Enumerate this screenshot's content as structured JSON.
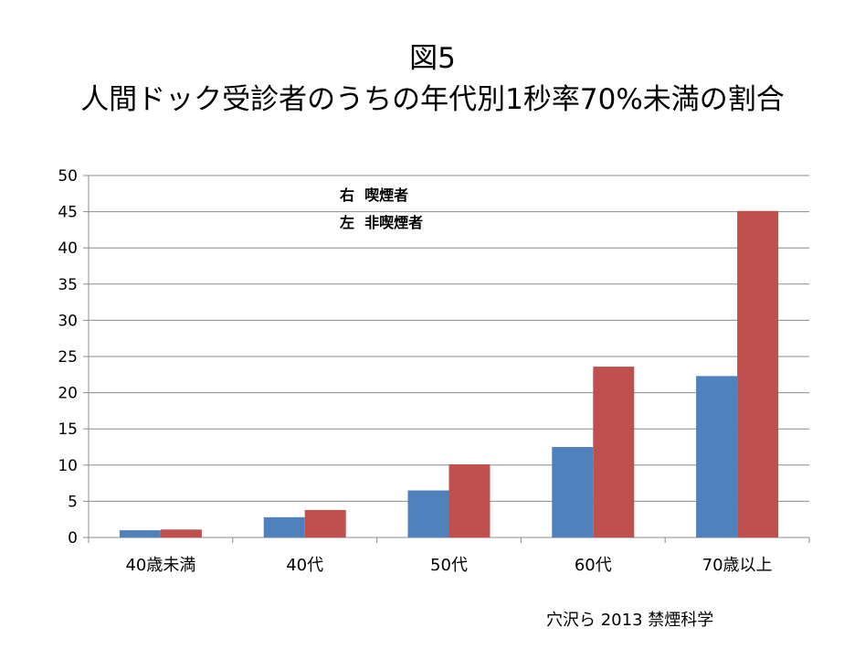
{
  "figure": {
    "title_line1": "図5",
    "title_line2": "人間ドック受診者のうちの年代別1秒率70%未満の割合",
    "source": "穴沢ら 2013 禁煙科学"
  },
  "chart_data": {
    "type": "bar",
    "categories": [
      "40歳未満",
      "40代",
      "50代",
      "60代",
      "70歳以上"
    ],
    "series": [
      {
        "name": "非喫煙者",
        "color": "#4f81bd",
        "values": [
          1.0,
          2.8,
          6.5,
          12.5,
          22.3
        ]
      },
      {
        "name": "喫煙者",
        "color": "#c0504d",
        "values": [
          1.1,
          3.8,
          10.1,
          23.6,
          45.1
        ]
      }
    ],
    "ylim": [
      0,
      50
    ],
    "yticks": [
      0,
      5,
      10,
      15,
      20,
      25,
      30,
      35,
      40,
      45,
      50
    ],
    "grid": true,
    "annotations": [
      "右  喫煙者",
      "左  非喫煙者"
    ]
  }
}
